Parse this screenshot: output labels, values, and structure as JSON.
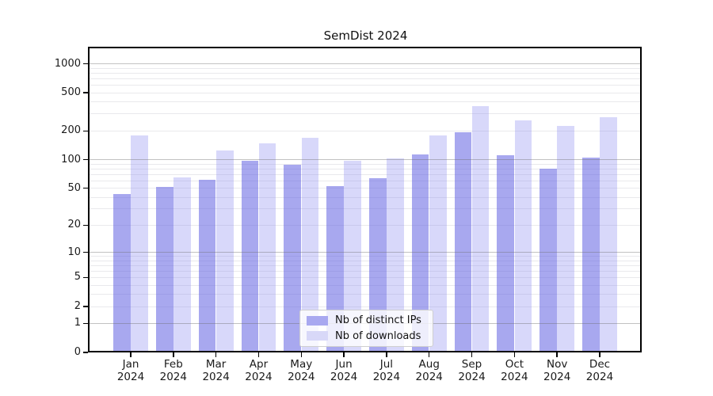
{
  "title": "SemDist 2024",
  "chart_data": {
    "type": "bar",
    "title": "SemDist 2024",
    "xlabel": "",
    "ylabel": "",
    "yscale": "symlog",
    "ylim": [
      0,
      1450
    ],
    "grid": true,
    "legend_position": "lower center",
    "categories": [
      "Jan 2024",
      "Feb 2024",
      "Mar 2024",
      "Apr 2024",
      "May 2024",
      "Jun 2024",
      "Jul 2024",
      "Aug 2024",
      "Sep 2024",
      "Oct 2024",
      "Nov 2024",
      "Dec 2024"
    ],
    "y_ticks": [
      0,
      1,
      2,
      5,
      10,
      20,
      50,
      100,
      200,
      500,
      1000
    ],
    "y_major_gridlines": [
      1,
      10,
      100,
      1000
    ],
    "y_minor_gridlines": [
      2,
      3,
      4,
      5,
      6,
      7,
      8,
      9,
      20,
      30,
      40,
      50,
      60,
      70,
      80,
      90,
      200,
      300,
      400,
      500,
      600,
      700,
      800,
      900
    ],
    "series": [
      {
        "name": "Nb of distinct IPs",
        "color": "#a8a8f0",
        "fill": "rgba(100,100,226,0.56)",
        "values": [
          43,
          52,
          61,
          97,
          88,
          53,
          64,
          113,
          192,
          111,
          81,
          106
        ]
      },
      {
        "name": "Nb of downloads",
        "color": "#d8d8f8",
        "fill": "rgba(140,140,240,0.34)",
        "values": [
          181,
          65,
          125,
          148,
          170,
          97,
          103,
          181,
          365,
          258,
          224,
          278
        ]
      }
    ]
  },
  "colors": {
    "background": "#ffffff",
    "spine": "#000000",
    "grid_major": "#b0b0b0",
    "grid_minor": "#e9e9ec",
    "text": "#1a1a1a"
  }
}
